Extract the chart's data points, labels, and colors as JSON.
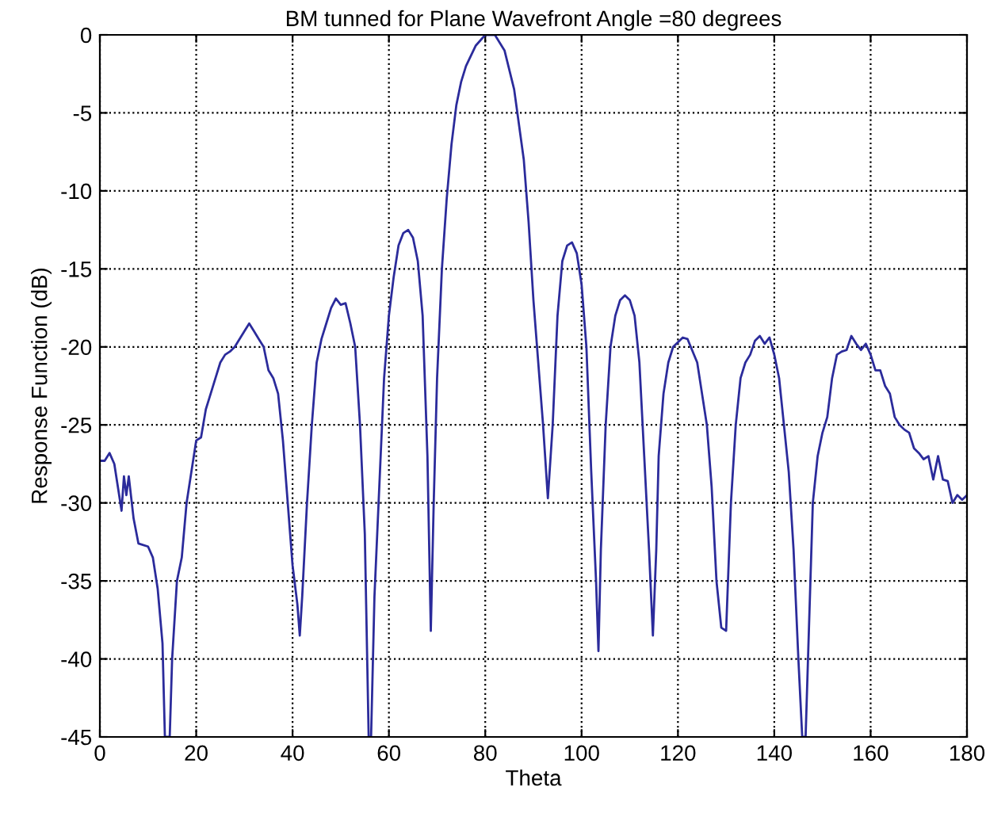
{
  "chart_data": {
    "type": "line",
    "title": "BM tunned for Plane Wavefront Angle =80 degrees",
    "xlabel": "Theta",
    "ylabel": "Response Function (dB)",
    "xlim": [
      0,
      180
    ],
    "ylim": [
      -45,
      0
    ],
    "xticks": [
      0,
      20,
      40,
      60,
      80,
      100,
      120,
      140,
      160,
      180
    ],
    "yticks": [
      -45,
      -40,
      -35,
      -30,
      -25,
      -20,
      -15,
      -10,
      -5,
      0
    ],
    "grid": true,
    "line_style": "solid",
    "marker": "none",
    "series": [
      {
        "color": "#2b2b9b",
        "x": [
          0,
          1,
          2,
          3,
          4,
          4.5,
          5,
          5.5,
          6,
          7,
          8,
          10,
          11,
          12,
          13,
          13.5,
          14.5,
          15,
          16,
          17,
          18,
          19,
          20,
          21,
          22,
          23,
          24,
          25,
          26,
          27,
          28,
          30,
          31,
          32,
          33,
          34,
          35,
          36,
          37,
          38,
          39,
          40,
          41,
          41.5,
          42,
          43,
          44,
          45,
          46,
          47,
          48,
          49,
          50,
          51,
          52,
          53,
          54,
          55,
          55.8,
          56.3,
          57,
          58,
          59,
          60,
          61,
          62,
          63,
          64,
          65,
          66,
          67,
          68,
          68.7,
          69.3,
          70,
          71,
          72,
          73,
          74,
          75,
          76,
          78,
          80,
          82,
          84,
          86,
          88,
          89,
          90,
          91,
          92,
          93,
          94,
          95,
          96,
          97,
          98,
          99,
          100,
          101,
          102,
          103,
          103.5,
          104,
          105,
          106,
          107,
          108,
          109,
          110,
          111,
          112,
          113,
          114,
          114.8,
          115.5,
          116,
          117,
          118,
          119,
          121,
          122,
          124,
          125,
          126,
          127,
          128,
          129,
          130,
          131,
          132,
          133,
          134,
          135,
          136,
          137,
          138,
          139,
          140,
          141,
          142,
          143,
          144,
          145,
          145.8,
          146.5,
          147.5,
          148,
          149,
          150,
          151,
          152,
          153,
          154,
          155,
          156,
          157,
          158,
          159,
          160,
          161,
          162,
          163,
          164,
          165,
          166,
          167,
          168,
          169,
          170,
          171,
          172,
          173,
          174,
          175,
          176,
          177,
          178,
          179,
          180
        ],
        "values": [
          -27.3,
          -27.3,
          -26.8,
          -27.5,
          -29.5,
          -30.5,
          -28.3,
          -29.5,
          -28.3,
          -31,
          -32.6,
          -32.8,
          -33.5,
          -35.5,
          -39,
          -45,
          -45,
          -40,
          -35,
          -33.5,
          -30,
          -28,
          -26,
          -25.8,
          -24,
          -23,
          -22,
          -21,
          -20.5,
          -20.3,
          -20,
          -19,
          -18.5,
          -19,
          -19.5,
          -20,
          -21.5,
          -22,
          -23,
          -26,
          -30,
          -34,
          -36.5,
          -38.5,
          -36,
          -30,
          -25,
          -21,
          -19.5,
          -18.5,
          -17.5,
          -16.9,
          -17.3,
          -17.2,
          -18.5,
          -20,
          -25,
          -32,
          -45,
          -45,
          -36,
          -29,
          -22,
          -18,
          -15.5,
          -13.5,
          -12.7,
          -12.5,
          -13,
          -14.5,
          -18,
          -27,
          -38.2,
          -30,
          -22,
          -15,
          -10.5,
          -7,
          -4.5,
          -3,
          -2,
          -0.7,
          0,
          0,
          -1,
          -3.5,
          -8,
          -12,
          -17,
          -21,
          -25,
          -29.7,
          -25,
          -18,
          -14.5,
          -13.5,
          -13.3,
          -14,
          -16,
          -20,
          -28,
          -35,
          -39.5,
          -33,
          -25,
          -20,
          -18,
          -17,
          -16.7,
          -17,
          -18,
          -21,
          -27,
          -33,
          -38.5,
          -33,
          -27,
          -23,
          -21,
          -20,
          -19.4,
          -19.5,
          -21,
          -23,
          -25,
          -29,
          -35,
          -38,
          -38.2,
          -30,
          -25,
          -22,
          -21,
          -20.5,
          -19.6,
          -19.3,
          -19.8,
          -19.4,
          -20.5,
          -22,
          -25,
          -28,
          -33,
          -40,
          -45,
          -45,
          -35,
          -30,
          -27,
          -25.5,
          -24.5,
          -22,
          -20.5,
          -20.3,
          -20.2,
          -19.3,
          -19.8,
          -20.2,
          -19.8,
          -20.5,
          -21.5,
          -21.5,
          -22.5,
          -23,
          -24.5,
          -25,
          -25.3,
          -25.5,
          -26.5,
          -26.8,
          -27.2,
          -27,
          -28.5,
          -27,
          -28.5,
          -28.6,
          -30,
          -29.5,
          -29.8,
          -29.5
        ]
      }
    ]
  }
}
